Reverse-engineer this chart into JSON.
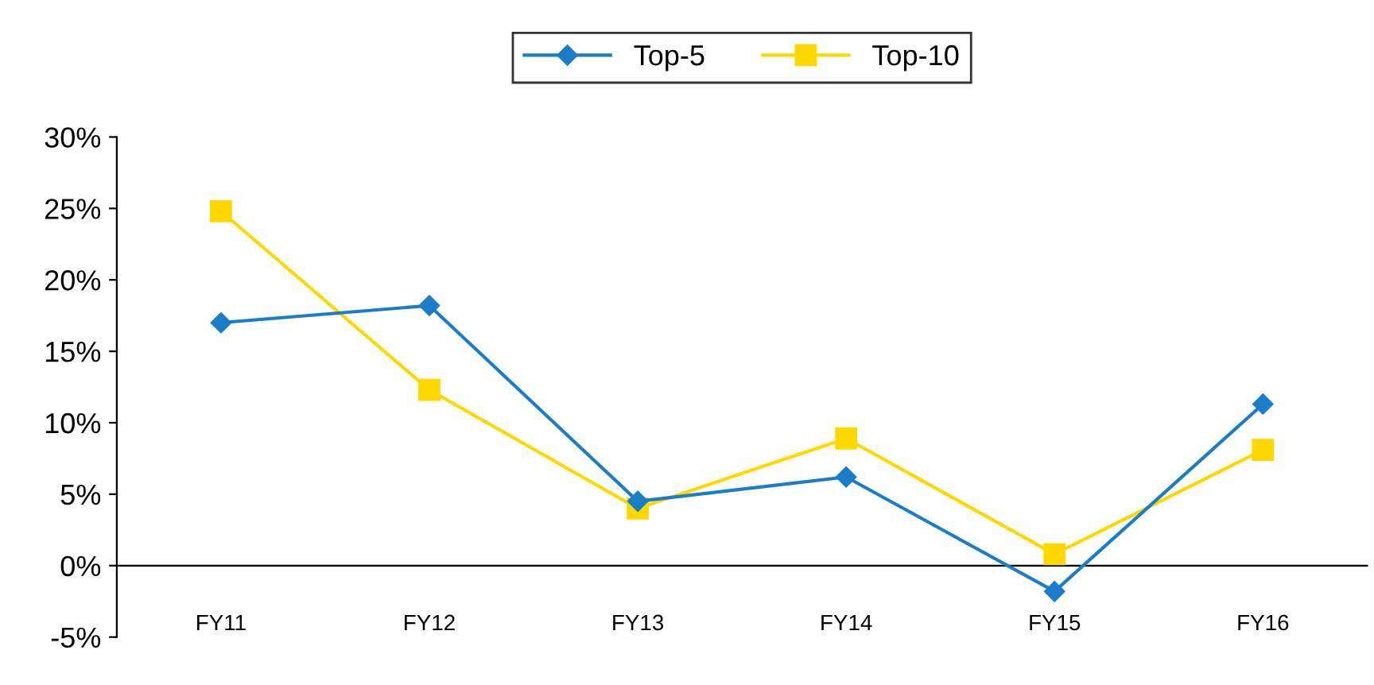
{
  "chart_data": {
    "type": "line",
    "categories": [
      "FY11",
      "FY12",
      "FY13",
      "FY14",
      "FY15",
      "FY16"
    ],
    "series": [
      {
        "name": "Top-5",
        "color": "#1b7cc8",
        "marker": "diamond",
        "values": [
          17.0,
          18.2,
          4.5,
          6.2,
          -1.8,
          11.3
        ]
      },
      {
        "name": "Top-10",
        "color": "#ffd800",
        "marker": "square",
        "values": [
          24.8,
          12.3,
          4.0,
          8.9,
          0.8,
          8.1
        ]
      }
    ],
    "ylim": [
      -5,
      30
    ],
    "yticks": [
      {
        "value": -5,
        "label": "-5%"
      },
      {
        "value": 0,
        "label": "0%"
      },
      {
        "value": 5,
        "label": "5%"
      },
      {
        "value": 10,
        "label": "10%"
      },
      {
        "value": 15,
        "label": "15%"
      },
      {
        "value": 20,
        "label": "20%"
      },
      {
        "value": 25,
        "label": "25%"
      },
      {
        "value": 30,
        "label": "30%"
      }
    ],
    "grid": false,
    "legend": "top",
    "line_style": "solid"
  }
}
